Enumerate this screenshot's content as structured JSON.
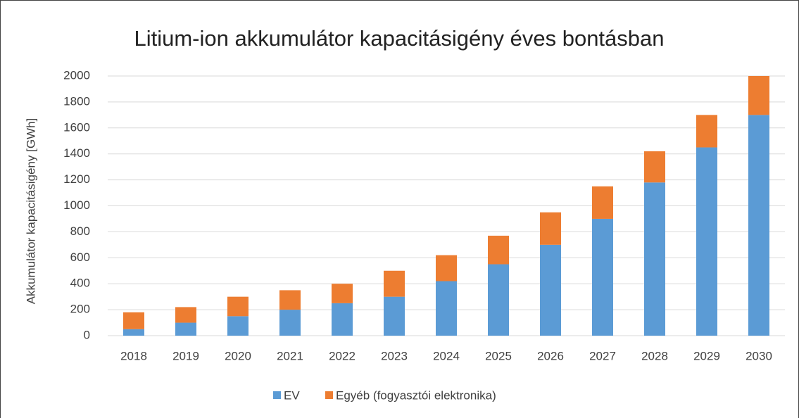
{
  "chart_data": {
    "type": "stacked_bar",
    "title": "Litium-ion akkumulátor kapacitásigény éves bontásban",
    "y_label": "Akkumulátor kapacitásigény [GWh]",
    "categories": [
      "2018",
      "2019",
      "2020",
      "2021",
      "2022",
      "2023",
      "2024",
      "2025",
      "2026",
      "2027",
      "2028",
      "2029",
      "2030"
    ],
    "series": [
      {
        "name": "EV",
        "color": "#5b9bd5",
        "values": [
          50,
          100,
          150,
          200,
          250,
          300,
          420,
          550,
          700,
          900,
          1180,
          1450,
          1700
        ]
      },
      {
        "name": "Egyéb (fogyasztói elektronika)",
        "color": "#ed7d31",
        "values": [
          130,
          120,
          150,
          150,
          150,
          200,
          200,
          220,
          250,
          250,
          240,
          250,
          300
        ]
      }
    ],
    "ylim": [
      0,
      2000
    ],
    "yticks": [
      0,
      200,
      400,
      600,
      800,
      1000,
      1200,
      1400,
      1600,
      1800,
      2000
    ],
    "grid": true,
    "legend": "bottom"
  }
}
